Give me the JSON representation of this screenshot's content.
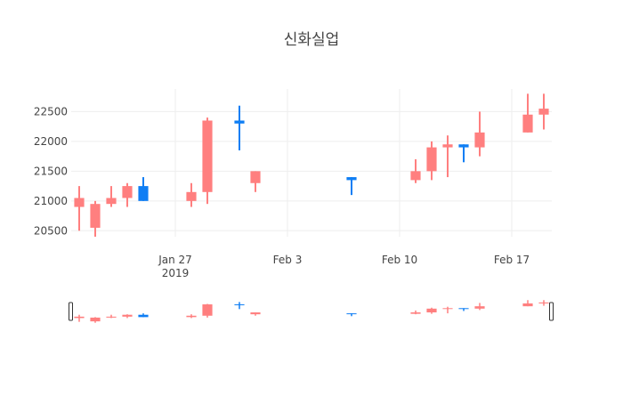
{
  "chart_data": {
    "type": "candlestick",
    "title": "신화실업",
    "xlabel": "",
    "ylabel": "",
    "ylim": [
      20400,
      22880
    ],
    "yticks": [
      20500,
      21000,
      21500,
      22000,
      22500
    ],
    "xticks": [
      {
        "date": "2019-01-27",
        "label": "Jan 27",
        "sublabel": "2019"
      },
      {
        "date": "2019-02-03",
        "label": "Feb 3",
        "sublabel": ""
      },
      {
        "date": "2019-02-10",
        "label": "Feb 10",
        "sublabel": ""
      },
      {
        "date": "2019-02-17",
        "label": "Feb 17",
        "sublabel": ""
      }
    ],
    "xlim": [
      "2019-01-20T12:00",
      "2019-02-19T12:00"
    ],
    "grid": true,
    "rangeslider": true,
    "colors": {
      "increasing": "#0f7ef4",
      "decreasing": "#ff7f7f",
      "grid": "#eeeeee"
    },
    "candles": [
      {
        "date": "2019-01-21",
        "open": 21050,
        "high": 21250,
        "low": 20500,
        "close": 20900
      },
      {
        "date": "2019-01-22",
        "open": 20950,
        "high": 21000,
        "low": 20400,
        "close": 20550
      },
      {
        "date": "2019-01-23",
        "open": 21050,
        "high": 21250,
        "low": 20900,
        "close": 20950
      },
      {
        "date": "2019-01-24",
        "open": 21250,
        "high": 21300,
        "low": 20900,
        "close": 21050
      },
      {
        "date": "2019-01-25",
        "open": 21000,
        "high": 21400,
        "low": 21000,
        "close": 21250
      },
      {
        "date": "2019-01-28",
        "open": 21150,
        "high": 21300,
        "low": 20900,
        "close": 21000
      },
      {
        "date": "2019-01-29",
        "open": 22350,
        "high": 22400,
        "low": 20950,
        "close": 21150
      },
      {
        "date": "2019-01-31",
        "open": 22300,
        "high": 22600,
        "low": 21850,
        "close": 22350
      },
      {
        "date": "2019-02-01",
        "open": 21500,
        "high": 21500,
        "low": 21150,
        "close": 21300
      },
      {
        "date": "2019-02-07",
        "open": 21350,
        "high": 21400,
        "low": 21100,
        "close": 21400
      },
      {
        "date": "2019-02-11",
        "open": 21500,
        "high": 21700,
        "low": 21300,
        "close": 21350
      },
      {
        "date": "2019-02-12",
        "open": 21900,
        "high": 22000,
        "low": 21350,
        "close": 21500
      },
      {
        "date": "2019-02-13",
        "open": 21950,
        "high": 22100,
        "low": 21400,
        "close": 21900
      },
      {
        "date": "2019-02-14",
        "open": 21900,
        "high": 21950,
        "low": 21650,
        "close": 21950
      },
      {
        "date": "2019-02-15",
        "open": 22150,
        "high": 22500,
        "low": 21750,
        "close": 21900
      },
      {
        "date": "2019-02-18",
        "open": 22450,
        "high": 22800,
        "low": 22150,
        "close": 22150
      },
      {
        "date": "2019-02-19",
        "open": 22550,
        "high": 22800,
        "low": 22200,
        "close": 22450
      }
    ]
  }
}
